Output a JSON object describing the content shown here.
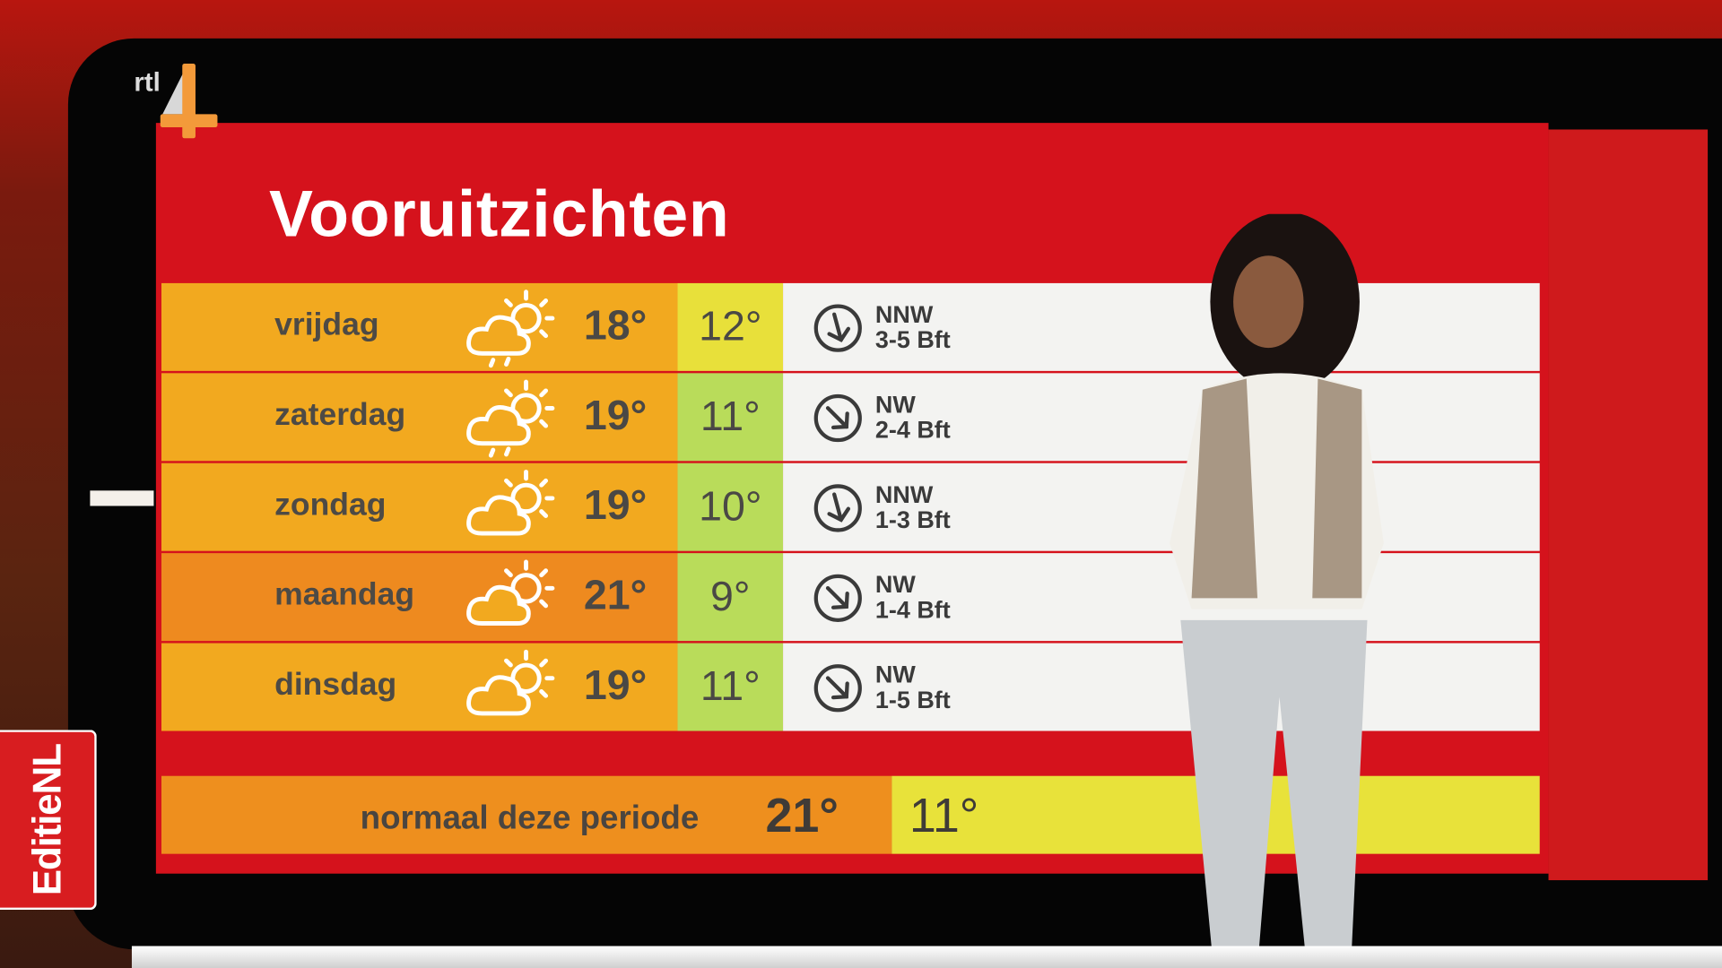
{
  "channel": {
    "logo_text": "rtl 4",
    "program_badge": "EditieNL"
  },
  "title": "Vooruitzichten",
  "colors": {
    "panel_red": "#d5121c",
    "max_orange": "#f2a91f",
    "max_dark_orange": "#ee8a1f",
    "min_yellow": "#e8e03a",
    "min_green": "#b9dc5a",
    "wind_bg": "#f3f3f1"
  },
  "forecast": [
    {
      "day": "vrijdag",
      "icon": "sun-cloud-rain-icon",
      "max": "18°",
      "min": "12°",
      "wind_dir": "NNW",
      "wind_force": "3-5 Bft"
    },
    {
      "day": "zaterdag",
      "icon": "sun-cloud-rain-icon",
      "max": "19°",
      "min": "11°",
      "wind_dir": "NW",
      "wind_force": "2-4 Bft"
    },
    {
      "day": "zondag",
      "icon": "sun-cloud-icon",
      "max": "19°",
      "min": "10°",
      "wind_dir": "NNW",
      "wind_force": "1-3 Bft"
    },
    {
      "day": "maandag",
      "icon": "sun-cloud-icon",
      "max": "21°",
      "min": "9°",
      "wind_dir": "NW",
      "wind_force": "1-4 Bft"
    },
    {
      "day": "dinsdag",
      "icon": "sun-cloud-icon",
      "max": "19°",
      "min": "11°",
      "wind_dir": "NW",
      "wind_force": "1-5 Bft"
    }
  ],
  "normal": {
    "label": "normaal deze periode",
    "max": "21°",
    "min": "11°"
  }
}
